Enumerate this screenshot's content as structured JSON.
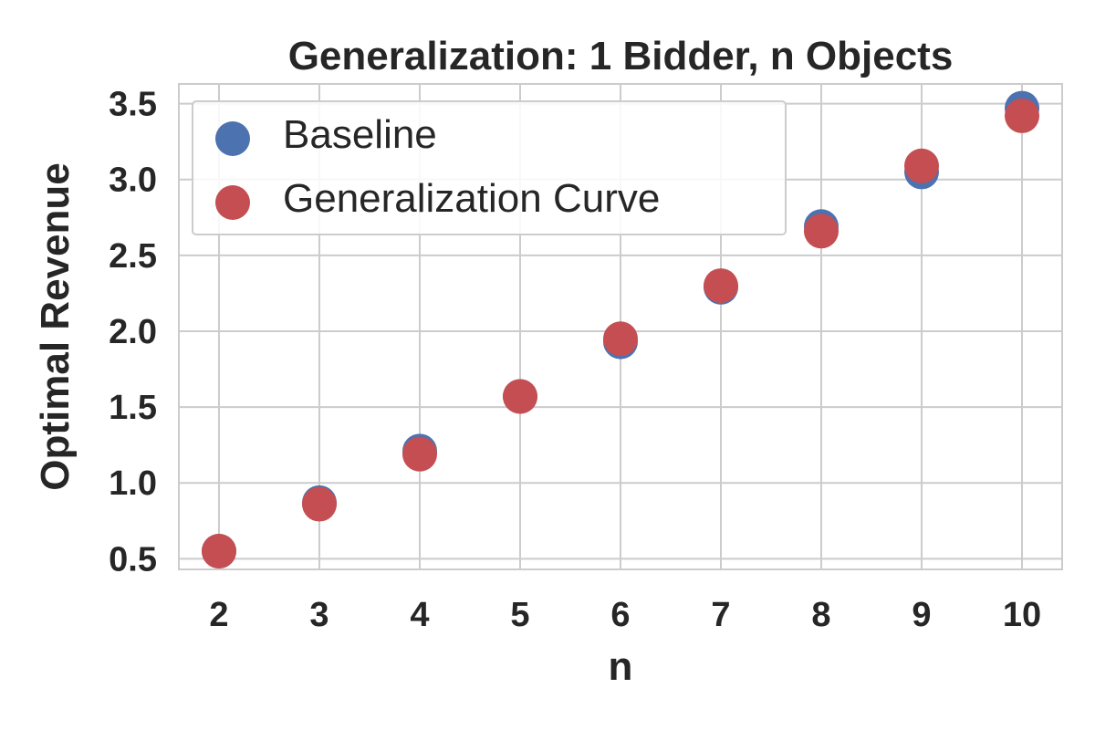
{
  "chart_data": {
    "type": "scatter",
    "title": "Generalization: 1 Bidder, n Objects",
    "xlabel": "n",
    "ylabel": "Optimal Revenue",
    "x": [
      2,
      3,
      4,
      5,
      6,
      7,
      8,
      9,
      10
    ],
    "xlim": [
      1.6,
      10.4
    ],
    "ylim": [
      0.43,
      3.63
    ],
    "xticks": [
      2,
      3,
      4,
      5,
      6,
      7,
      8,
      9,
      10
    ],
    "yticks": [
      0.5,
      1.0,
      1.5,
      2.0,
      2.5,
      3.0,
      3.5
    ],
    "ytick_labels": [
      "0.5",
      "1.0",
      "1.5",
      "2.0",
      "2.5",
      "3.0",
      "3.5"
    ],
    "grid": true,
    "legend_position": "upper-left",
    "series": [
      {
        "name": "Baseline",
        "color": "#4c72b0",
        "values": [
          0.55,
          0.87,
          1.21,
          1.57,
          1.93,
          2.29,
          2.69,
          3.05,
          3.47
        ]
      },
      {
        "name": "Generalization Curve",
        "color": "#c44e52",
        "values": [
          0.55,
          0.86,
          1.19,
          1.57,
          1.95,
          2.3,
          2.66,
          3.09,
          3.42
        ]
      }
    ]
  }
}
